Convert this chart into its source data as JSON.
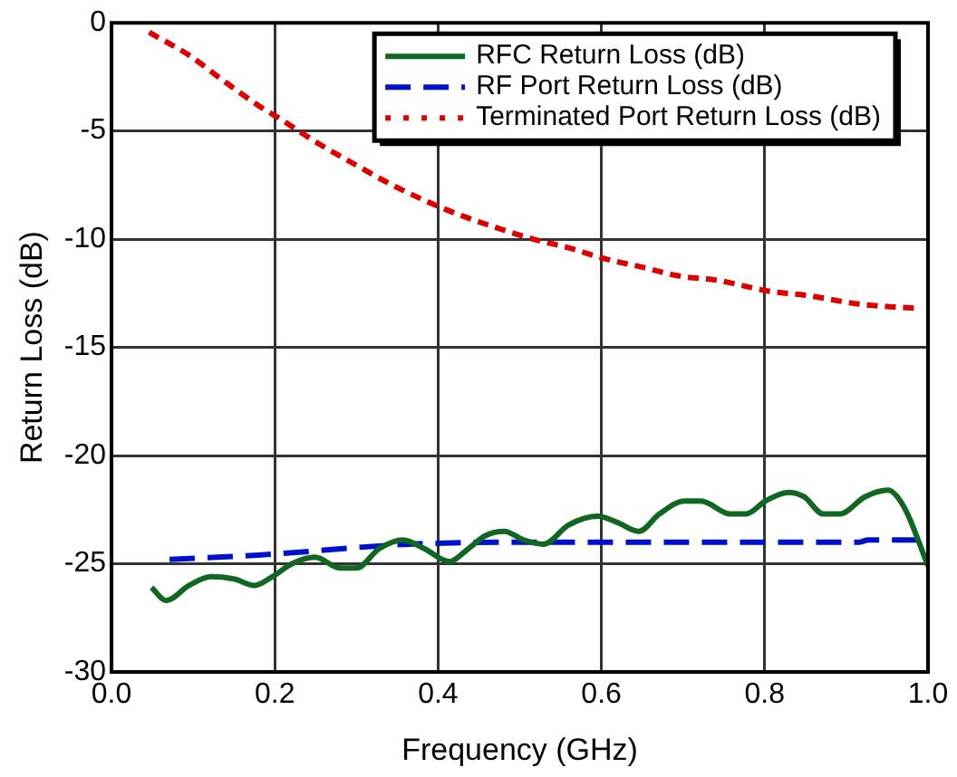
{
  "chart_data": {
    "type": "line",
    "xlabel": "Frequency (GHz)",
    "ylabel": "Return Loss (dB)",
    "xlim": [
      0,
      1
    ],
    "ylim": [
      -30,
      0
    ],
    "xticks": [
      {
        "value": 0,
        "label": "0.0"
      },
      0.2,
      0.4,
      0.6,
      0.8,
      {
        "value": 1,
        "label": "1.0"
      }
    ],
    "yticks": [
      -30,
      -25,
      -20,
      -15,
      -10,
      -5,
      0
    ],
    "grid": true,
    "legend": "top right",
    "marker": "none",
    "series": [
      {
        "name": "RFC Return Loss (dB)",
        "color": "#116622",
        "line_style": "solid",
        "x": [
          0.049,
          0.067,
          0.095,
          0.122,
          0.15,
          0.175,
          0.197,
          0.221,
          0.249,
          0.28,
          0.3,
          0.328,
          0.357,
          0.383,
          0.414,
          0.434,
          0.458,
          0.481,
          0.505,
          0.529,
          0.56,
          0.596,
          0.62,
          0.646,
          0.671,
          0.702,
          0.722,
          0.758,
          0.777,
          0.801,
          0.829,
          0.848,
          0.872,
          0.892,
          0.923,
          0.951,
          0.971,
          1.0
        ],
        "values": [
          -26.1,
          -26.7,
          -26.0,
          -25.6,
          -25.7,
          -26.0,
          -25.6,
          -25.0,
          -24.7,
          -25.2,
          -25.2,
          -24.3,
          -23.9,
          -24.3,
          -24.9,
          -24.4,
          -23.7,
          -23.5,
          -23.9,
          -24.1,
          -23.2,
          -22.8,
          -23.1,
          -23.5,
          -22.7,
          -22.1,
          -22.1,
          -22.7,
          -22.7,
          -22.1,
          -21.7,
          -21.9,
          -22.7,
          -22.7,
          -21.9,
          -21.6,
          -22.4,
          -25.1
        ]
      },
      {
        "name": "RF Port Return Loss (dB)",
        "color": "#0011cc",
        "line_style": "dashed",
        "x": [
          0.071,
          0.18,
          0.363,
          0.52,
          0.916,
          0.927,
          0.987
        ],
        "values": [
          -24.8,
          -24.6,
          -24.1,
          -24.0,
          -24.0,
          -23.9,
          -23.9
        ]
      },
      {
        "name": "Terminated Port Return Loss (dB)",
        "color": "#dd0000",
        "line_style": "dotted",
        "x": [
          0.049,
          0.095,
          0.138,
          0.183,
          0.205,
          0.25,
          0.296,
          0.339,
          0.383,
          0.428,
          0.474,
          0.517,
          0.56,
          0.604,
          0.651,
          0.695,
          0.742,
          0.805,
          0.852,
          0.916,
          0.987
        ],
        "values": [
          -0.5,
          -1.5,
          -2.7,
          -3.9,
          -4.4,
          -5.5,
          -6.5,
          -7.4,
          -8.2,
          -8.9,
          -9.5,
          -10.0,
          -10.4,
          -10.9,
          -11.3,
          -11.7,
          -11.9,
          -12.4,
          -12.6,
          -13.0,
          -13.2
        ]
      }
    ]
  }
}
